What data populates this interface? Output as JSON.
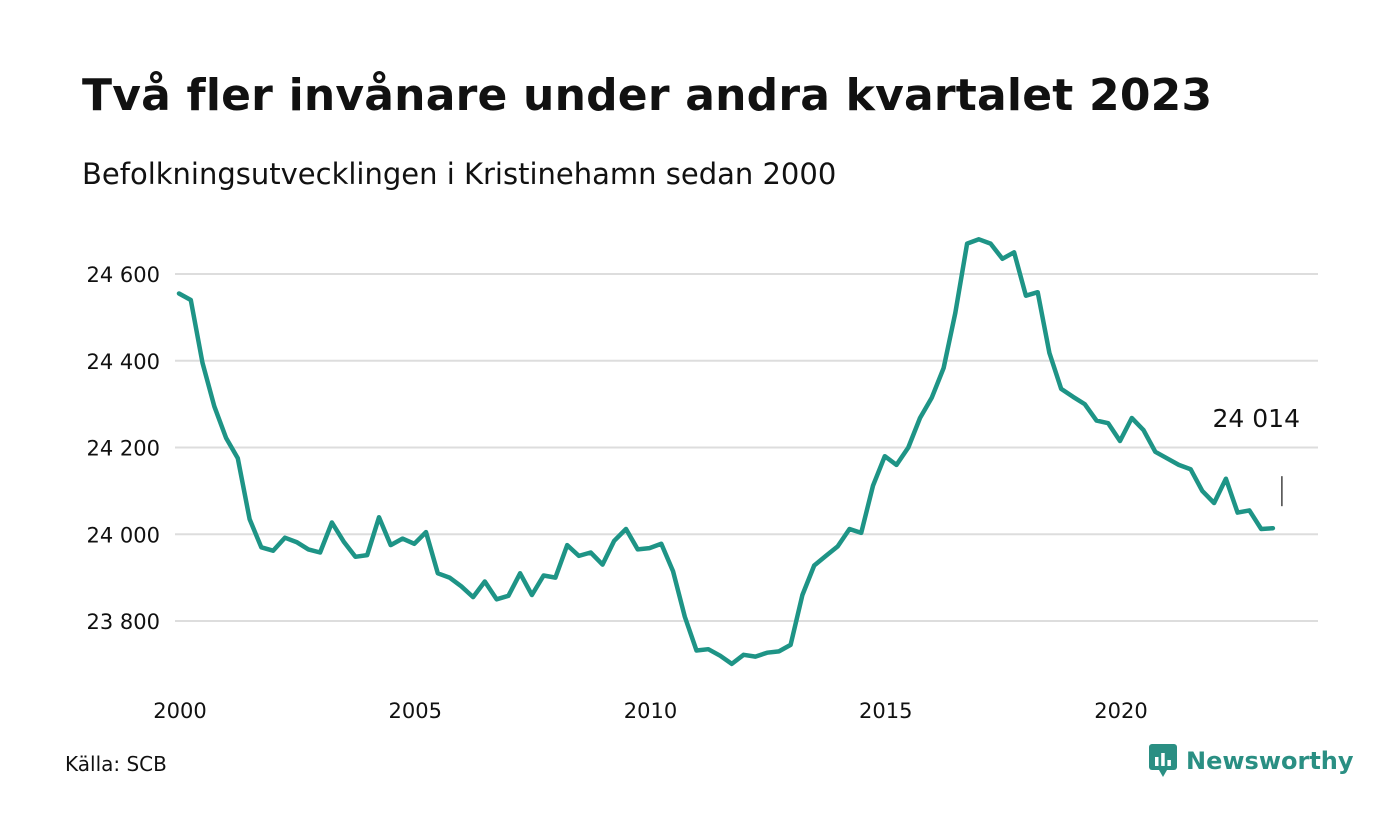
{
  "header": {
    "title": "Två fler invånare under andra kvartalet 2023",
    "subtitle": "Befolkningsutvecklingen i Kristinehamn sedan 2000"
  },
  "footer": {
    "source": "Källa: SCB",
    "brand": "Newsworthy",
    "brand_color": "#2a8f83"
  },
  "chart_data": {
    "type": "line",
    "title": "Två fler invånare under andra kvartalet 2023",
    "subtitle": "Befolkningsutvecklingen i Kristinehamn sedan 2000",
    "xlabel": "",
    "ylabel": "",
    "x_ticks": [
      "2000",
      "2005",
      "2010",
      "2015",
      "2020"
    ],
    "y_ticks": [
      "23 800",
      "24 000",
      "24 200",
      "24 400",
      "24 600"
    ],
    "xlim": [
      2000,
      2023.6
    ],
    "ylim": [
      23700,
      24700
    ],
    "grid": "horizontal",
    "line_color": "#1e9486",
    "last_value_label": "24 014",
    "series": [
      {
        "x": [
          2000.0,
          2000.25,
          2000.5,
          2000.75,
          2001.0,
          2001.25,
          2001.5,
          2001.75,
          2002.0,
          2002.25,
          2002.5,
          2002.75,
          2003.0,
          2003.25,
          2003.5,
          2003.75,
          2004.0,
          2004.25,
          2004.5,
          2004.75,
          2005.0,
          2005.25,
          2005.5,
          2005.75,
          2006.0,
          2006.25,
          2006.5,
          2006.75,
          2007.0,
          2007.25,
          2007.5,
          2007.75,
          2008.0,
          2008.25,
          2008.5,
          2008.75,
          2009.0,
          2009.25,
          2009.5,
          2009.75,
          2010.0,
          2010.25,
          2010.5,
          2010.75,
          2011.0,
          2011.25,
          2011.5,
          2011.75,
          2012.0,
          2012.25,
          2012.5,
          2012.75,
          2013.0,
          2013.25,
          2013.5,
          2013.75,
          2014.0,
          2014.25,
          2014.5,
          2014.75,
          2015.0,
          2015.25,
          2015.5,
          2015.75,
          2016.0,
          2016.25,
          2016.5,
          2016.75,
          2017.0,
          2017.25,
          2017.5,
          2017.75,
          2018.0,
          2018.25,
          2018.5,
          2018.75,
          2019.0,
          2019.25,
          2019.5,
          2019.75,
          2020.0,
          2020.25,
          2020.5,
          2020.75,
          2021.0,
          2021.25,
          2021.5,
          2021.75,
          2022.0,
          2022.25,
          2022.5,
          2022.75,
          2023.0,
          2023.25
        ],
        "y": [
          24555,
          24540,
          24395,
          24295,
          24222,
          24175,
          24035,
          23970,
          23962,
          23992,
          23982,
          23965,
          23958,
          24027,
          23983,
          23948,
          23952,
          24039,
          23975,
          23990,
          23978,
          24005,
          23910,
          23900,
          23880,
          23855,
          23891,
          23850,
          23858,
          23910,
          23860,
          23905,
          23900,
          23975,
          23950,
          23958,
          23930,
          23985,
          24012,
          23965,
          23968,
          23978,
          23915,
          23810,
          23732,
          23735,
          23720,
          23701,
          23722,
          23718,
          23727,
          23730,
          23745,
          23860,
          23928,
          23950,
          23972,
          24012,
          24003,
          24112,
          24180,
          24160,
          24200,
          24268,
          24315,
          24383,
          24510,
          24670,
          24680,
          24670,
          24635,
          24650,
          24550,
          24558,
          24418,
          24335,
          24317,
          24300,
          24262,
          24256,
          24215,
          24268,
          24240,
          24190,
          24175,
          24160,
          24150,
          24100,
          24072,
          24128,
          24050,
          24055,
          24012,
          24014
        ]
      }
    ]
  }
}
